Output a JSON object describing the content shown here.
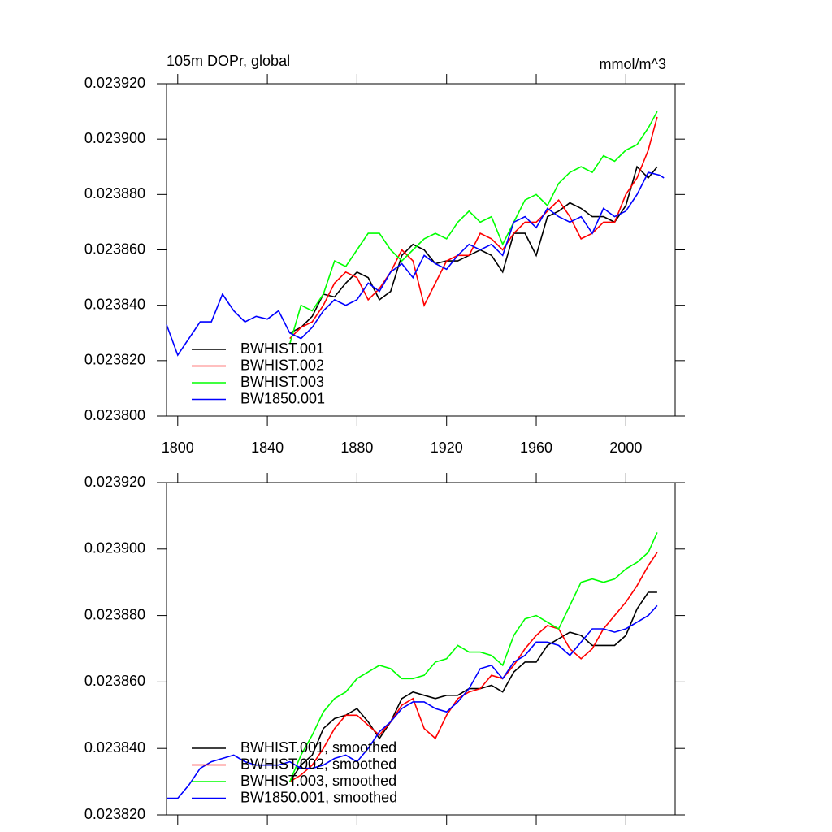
{
  "chart_data": [
    {
      "type": "line",
      "title": "105m DOPr, global",
      "units": "mmol/m^3",
      "xlim": [
        1795,
        2022
      ],
      "xticks": [
        1800,
        1840,
        1880,
        1920,
        1960,
        2000
      ],
      "ylim": [
        0.0238,
        0.02392
      ],
      "yticks": [
        {
          "value": 0.0238,
          "label": "0.023800"
        },
        {
          "value": 0.02382,
          "label": "0.023820"
        },
        {
          "value": 0.02384,
          "label": "0.023840"
        },
        {
          "value": 0.02386,
          "label": "0.023860"
        },
        {
          "value": 0.02388,
          "label": "0.023880"
        },
        {
          "value": 0.0239,
          "label": "0.023900"
        },
        {
          "value": 0.02392,
          "label": "0.023920"
        }
      ],
      "legend": "lower left",
      "series": [
        {
          "name": "BWHIST.001",
          "color": "#000000",
          "x": [
            1850,
            1855,
            1860,
            1865,
            1870,
            1875,
            1880,
            1885,
            1890,
            1895,
            1900,
            1905,
            1910,
            1915,
            1920,
            1925,
            1930,
            1935,
            1940,
            1945,
            1950,
            1955,
            1960,
            1965,
            1970,
            1975,
            1980,
            1985,
            1990,
            1995,
            2000,
            2005,
            2010,
            2014
          ],
          "values": [
            0.02383,
            0.023832,
            0.023836,
            0.023844,
            0.023843,
            0.023848,
            0.023852,
            0.02385,
            0.023842,
            0.023845,
            0.023858,
            0.023862,
            0.02386,
            0.023855,
            0.023856,
            0.023856,
            0.023858,
            0.02386,
            0.023858,
            0.023852,
            0.023866,
            0.023866,
            0.023858,
            0.023872,
            0.023874,
            0.023877,
            0.023875,
            0.023872,
            0.023872,
            0.02387,
            0.023876,
            0.02389,
            0.023886,
            0.02389
          ]
        },
        {
          "name": "BWHIST.002",
          "color": "#ff0000",
          "x": [
            1850,
            1855,
            1860,
            1865,
            1870,
            1875,
            1880,
            1885,
            1890,
            1895,
            1900,
            1905,
            1910,
            1915,
            1920,
            1925,
            1930,
            1935,
            1940,
            1945,
            1950,
            1955,
            1960,
            1965,
            1970,
            1975,
            1980,
            1985,
            1990,
            1995,
            2000,
            2005,
            2010,
            2014
          ],
          "values": [
            0.023828,
            0.023832,
            0.023834,
            0.02384,
            0.023848,
            0.023852,
            0.02385,
            0.023842,
            0.023846,
            0.023852,
            0.02386,
            0.023856,
            0.02384,
            0.023848,
            0.023856,
            0.023858,
            0.023858,
            0.023866,
            0.023864,
            0.02386,
            0.023866,
            0.02387,
            0.02387,
            0.023874,
            0.023878,
            0.023872,
            0.023864,
            0.023866,
            0.02387,
            0.02387,
            0.02388,
            0.023886,
            0.023896,
            0.023908
          ]
        },
        {
          "name": "BWHIST.003",
          "color": "#00ff00",
          "x": [
            1850,
            1855,
            1860,
            1865,
            1870,
            1875,
            1880,
            1885,
            1890,
            1895,
            1900,
            1905,
            1910,
            1915,
            1920,
            1925,
            1930,
            1935,
            1940,
            1945,
            1950,
            1955,
            1960,
            1965,
            1970,
            1975,
            1980,
            1985,
            1990,
            1995,
            2000,
            2005,
            2010,
            2014
          ],
          "values": [
            0.023826,
            0.02384,
            0.023838,
            0.023844,
            0.023856,
            0.023854,
            0.02386,
            0.023866,
            0.023866,
            0.02386,
            0.023856,
            0.02386,
            0.023864,
            0.023866,
            0.023864,
            0.02387,
            0.023874,
            0.02387,
            0.023872,
            0.023862,
            0.02387,
            0.023878,
            0.02388,
            0.023876,
            0.023884,
            0.023888,
            0.02389,
            0.023888,
            0.023894,
            0.023892,
            0.023896,
            0.023898,
            0.023904,
            0.02391
          ]
        },
        {
          "name": "BW1850.001",
          "color": "#0000ff",
          "x": [
            1795,
            1800,
            1805,
            1810,
            1815,
            1820,
            1825,
            1830,
            1835,
            1840,
            1845,
            1850,
            1855,
            1860,
            1865,
            1870,
            1875,
            1880,
            1885,
            1890,
            1895,
            1900,
            1905,
            1910,
            1915,
            1920,
            1925,
            1930,
            1935,
            1940,
            1945,
            1950,
            1955,
            1960,
            1965,
            1970,
            1975,
            1980,
            1985,
            1990,
            1995,
            2000,
            2005,
            2010,
            2015,
            2017
          ],
          "values": [
            0.023833,
            0.023822,
            0.023828,
            0.023834,
            0.023834,
            0.023844,
            0.023838,
            0.023834,
            0.023836,
            0.023835,
            0.023838,
            0.02383,
            0.023828,
            0.023832,
            0.023838,
            0.023842,
            0.02384,
            0.023842,
            0.023848,
            0.023845,
            0.023852,
            0.023855,
            0.02385,
            0.023858,
            0.023855,
            0.023853,
            0.023858,
            0.023862,
            0.02386,
            0.023862,
            0.023858,
            0.02387,
            0.023872,
            0.023868,
            0.023875,
            0.023872,
            0.02387,
            0.023872,
            0.023866,
            0.023875,
            0.023872,
            0.023874,
            0.02388,
            0.023888,
            0.023887,
            0.023886
          ]
        }
      ]
    },
    {
      "type": "line",
      "show_xtick_labels": false,
      "xlim": [
        1795,
        2022
      ],
      "xticks": [
        1800,
        1840,
        1880,
        1920,
        1960,
        2000
      ],
      "ylim": [
        0.02382,
        0.02392
      ],
      "yticks": [
        {
          "value": 0.02382,
          "label": "0.023820"
        },
        {
          "value": 0.02384,
          "label": "0.023840"
        },
        {
          "value": 0.02386,
          "label": "0.023860"
        },
        {
          "value": 0.02388,
          "label": "0.023880"
        },
        {
          "value": 0.0239,
          "label": "0.023900"
        },
        {
          "value": 0.02392,
          "label": "0.023920"
        }
      ],
      "legend": "lower left",
      "series": [
        {
          "name": "BWHIST.001, smoothed",
          "color": "#000000",
          "x": [
            1850,
            1855,
            1860,
            1865,
            1870,
            1875,
            1880,
            1885,
            1890,
            1895,
            1900,
            1905,
            1910,
            1915,
            1920,
            1925,
            1930,
            1935,
            1940,
            1945,
            1950,
            1955,
            1960,
            1965,
            1970,
            1975,
            1980,
            1985,
            1990,
            1995,
            2000,
            2005,
            2010,
            2014
          ],
          "values": [
            0.02383,
            0.023835,
            0.023838,
            0.023846,
            0.023849,
            0.02385,
            0.023852,
            0.023848,
            0.023843,
            0.023848,
            0.023855,
            0.023857,
            0.023856,
            0.023855,
            0.023856,
            0.023856,
            0.023858,
            0.023858,
            0.023859,
            0.023857,
            0.023863,
            0.023866,
            0.023866,
            0.023871,
            0.023873,
            0.023875,
            0.023874,
            0.023871,
            0.023871,
            0.023871,
            0.023874,
            0.023882,
            0.023887,
            0.023887
          ]
        },
        {
          "name": "BWHIST.002, smoothed",
          "color": "#ff0000",
          "x": [
            1850,
            1855,
            1860,
            1865,
            1870,
            1875,
            1880,
            1885,
            1890,
            1895,
            1900,
            1905,
            1910,
            1915,
            1920,
            1925,
            1930,
            1935,
            1940,
            1945,
            1950,
            1955,
            1960,
            1965,
            1970,
            1975,
            1980,
            1985,
            1990,
            1995,
            2000,
            2005,
            2010,
            2014
          ],
          "values": [
            0.02383,
            0.023832,
            0.023835,
            0.02384,
            0.023846,
            0.02385,
            0.02385,
            0.023847,
            0.023844,
            0.023848,
            0.023853,
            0.023855,
            0.023846,
            0.023843,
            0.02385,
            0.023855,
            0.023857,
            0.023858,
            0.023862,
            0.023861,
            0.023865,
            0.02387,
            0.023874,
            0.023877,
            0.023876,
            0.02387,
            0.023867,
            0.02387,
            0.023876,
            0.02388,
            0.023884,
            0.023889,
            0.023895,
            0.023899
          ]
        },
        {
          "name": "BWHIST.003, smoothed",
          "color": "#00ff00",
          "x": [
            1850,
            1855,
            1860,
            1865,
            1870,
            1875,
            1880,
            1885,
            1890,
            1895,
            1900,
            1905,
            1910,
            1915,
            1920,
            1925,
            1930,
            1935,
            1940,
            1945,
            1950,
            1955,
            1960,
            1965,
            1970,
            1975,
            1980,
            1985,
            1990,
            1995,
            2000,
            2005,
            2010,
            2014
          ],
          "values": [
            0.02383,
            0.023838,
            0.023844,
            0.023851,
            0.023855,
            0.023857,
            0.023861,
            0.023863,
            0.023865,
            0.023864,
            0.023861,
            0.023861,
            0.023862,
            0.023866,
            0.023867,
            0.023871,
            0.023869,
            0.023869,
            0.023868,
            0.023865,
            0.023874,
            0.023879,
            0.02388,
            0.023878,
            0.023876,
            0.023883,
            0.02389,
            0.023891,
            0.02389,
            0.023891,
            0.023894,
            0.023896,
            0.023899,
            0.023905
          ]
        },
        {
          "name": "BW1850.001, smoothed",
          "color": "#0000ff",
          "x": [
            1795,
            1800,
            1805,
            1810,
            1815,
            1820,
            1825,
            1830,
            1835,
            1840,
            1845,
            1850,
            1855,
            1860,
            1865,
            1870,
            1875,
            1880,
            1885,
            1890,
            1895,
            1900,
            1905,
            1910,
            1915,
            1920,
            1925,
            1930,
            1935,
            1940,
            1945,
            1950,
            1955,
            1960,
            1965,
            1970,
            1975,
            1980,
            1985,
            1990,
            1995,
            2000,
            2005,
            2010,
            2014
          ],
          "values": [
            0.023825,
            0.023825,
            0.023829,
            0.023834,
            0.023836,
            0.023837,
            0.023838,
            0.023836,
            0.023835,
            0.023835,
            0.023835,
            0.023836,
            0.023834,
            0.023834,
            0.023835,
            0.023837,
            0.023838,
            0.023836,
            0.02384,
            0.023845,
            0.023848,
            0.023852,
            0.023854,
            0.023854,
            0.023852,
            0.023851,
            0.023854,
            0.023858,
            0.023864,
            0.023865,
            0.023861,
            0.023866,
            0.023868,
            0.023872,
            0.023872,
            0.023871,
            0.023868,
            0.023872,
            0.023876,
            0.023876,
            0.023875,
            0.023876,
            0.023878,
            0.02388,
            0.023883
          ]
        }
      ]
    }
  ]
}
